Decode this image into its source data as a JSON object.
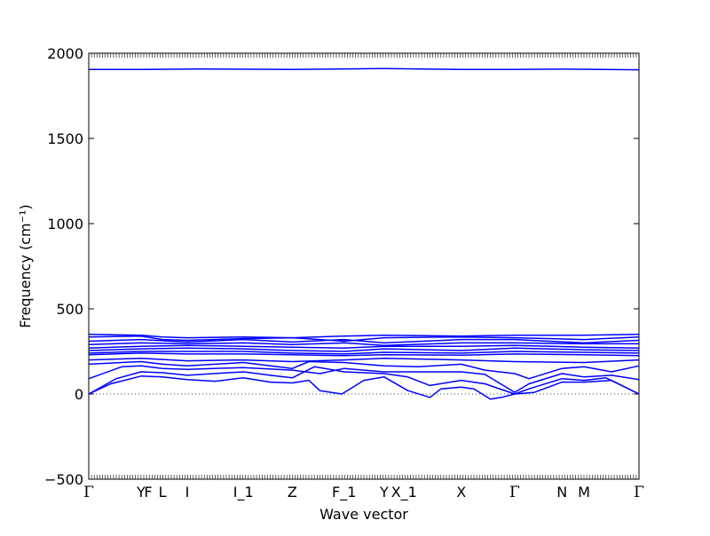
{
  "chart_data": {
    "type": "line",
    "title": "",
    "xlabel": "Wave vector",
    "ylabel": "Frequency (cm⁻¹)",
    "ylim": [
      -500,
      2000
    ],
    "yticks": [
      -500,
      0,
      500,
      1000,
      1500,
      2000
    ],
    "xlim": [
      0,
      100
    ],
    "grid": false,
    "legend": "none",
    "line_color": "#0000ff",
    "zero_line": {
      "y": 0,
      "style": "dotted",
      "color": "#000000"
    },
    "high_symmetry_points": [
      {
        "label": "Γ",
        "x": 0
      },
      {
        "label": "Y",
        "x": 9.5
      },
      {
        "label": "F",
        "x": 10.8
      },
      {
        "label": "L",
        "x": 13.4
      },
      {
        "label": "I",
        "x": 17.9
      },
      {
        "label": "I_1",
        "x": 28.1
      },
      {
        "label": "Z",
        "x": 37.0
      },
      {
        "label": "F_1",
        "x": 46.4
      },
      {
        "label": "Y",
        "x": 53.7
      },
      {
        "label": "X_1",
        "x": 57.3
      },
      {
        "label": "X",
        "x": 67.7
      },
      {
        "label": "Γ",
        "x": 77.4
      },
      {
        "label": "N",
        "x": 86.0
      },
      {
        "label": "M",
        "x": 90.0
      },
      {
        "label": "Γ",
        "x": 100
      }
    ],
    "series": [
      {
        "values": [
          [
            0,
            1905
          ],
          [
            10,
            1905
          ],
          [
            20,
            1908
          ],
          [
            37,
            1905
          ],
          [
            53.7,
            1910
          ],
          [
            67.7,
            1905
          ],
          [
            77.4,
            1905
          ],
          [
            86,
            1907
          ],
          [
            100,
            1903
          ]
        ]
      },
      {
        "values": [
          [
            0,
            350
          ],
          [
            9.5,
            345
          ],
          [
            13.4,
            335
          ],
          [
            17.9,
            330
          ],
          [
            28.1,
            335
          ],
          [
            37,
            330
          ],
          [
            46.4,
            340
          ],
          [
            53.7,
            345
          ],
          [
            67.7,
            340
          ],
          [
            77.4,
            345
          ],
          [
            90,
            345
          ],
          [
            100,
            350
          ]
        ]
      },
      {
        "values": [
          [
            0,
            335
          ],
          [
            9.5,
            340
          ],
          [
            13.4,
            320
          ],
          [
            17.9,
            315
          ],
          [
            28.1,
            325
          ],
          [
            37,
            330
          ],
          [
            46.4,
            310
          ],
          [
            53.7,
            330
          ],
          [
            67.7,
            335
          ],
          [
            77.4,
            330
          ],
          [
            90,
            320
          ],
          [
            100,
            335
          ]
        ]
      },
      {
        "values": [
          [
            0,
            310
          ],
          [
            9.5,
            320
          ],
          [
            17.9,
            305
          ],
          [
            28.1,
            320
          ],
          [
            37,
            305
          ],
          [
            46.4,
            320
          ],
          [
            53.7,
            300
          ],
          [
            67.7,
            320
          ],
          [
            77.4,
            320
          ],
          [
            90,
            300
          ],
          [
            100,
            315
          ]
        ]
      },
      {
        "values": [
          [
            0,
            290
          ],
          [
            9.5,
            300
          ],
          [
            17.9,
            295
          ],
          [
            28.1,
            300
          ],
          [
            37,
            290
          ],
          [
            46.4,
            300
          ],
          [
            53.7,
            285
          ],
          [
            67.7,
            300
          ],
          [
            77.4,
            300
          ],
          [
            90,
            295
          ],
          [
            100,
            295
          ]
        ]
      },
      {
        "values": [
          [
            0,
            270
          ],
          [
            9.5,
            280
          ],
          [
            17.9,
            285
          ],
          [
            28.1,
            280
          ],
          [
            37,
            275
          ],
          [
            46.4,
            270
          ],
          [
            53.7,
            280
          ],
          [
            67.7,
            280
          ],
          [
            77.4,
            285
          ],
          [
            90,
            275
          ],
          [
            100,
            270
          ]
        ]
      },
      {
        "values": [
          [
            0,
            255
          ],
          [
            9.5,
            265
          ],
          [
            17.9,
            270
          ],
          [
            28.1,
            265
          ],
          [
            37,
            255
          ],
          [
            46.4,
            250
          ],
          [
            53.7,
            265
          ],
          [
            67.7,
            255
          ],
          [
            77.4,
            270
          ],
          [
            90,
            260
          ],
          [
            100,
            255
          ]
        ]
      },
      {
        "values": [
          [
            0,
            240
          ],
          [
            9.5,
            250
          ],
          [
            17.9,
            250
          ],
          [
            28.1,
            250
          ],
          [
            37,
            240
          ],
          [
            46.4,
            235
          ],
          [
            53.7,
            245
          ],
          [
            67.7,
            240
          ],
          [
            77.4,
            250
          ],
          [
            90,
            245
          ],
          [
            100,
            240
          ]
        ]
      },
      {
        "values": [
          [
            0,
            230
          ],
          [
            9.5,
            240
          ],
          [
            17.9,
            235
          ],
          [
            28.1,
            235
          ],
          [
            37,
            230
          ],
          [
            46.4,
            225
          ],
          [
            53.7,
            230
          ],
          [
            67.7,
            228
          ],
          [
            77.4,
            235
          ],
          [
            90,
            230
          ],
          [
            100,
            225
          ]
        ]
      },
      {
        "values": [
          [
            0,
            200
          ],
          [
            9.5,
            210
          ],
          [
            17.9,
            195
          ],
          [
            28.1,
            200
          ],
          [
            37,
            190
          ],
          [
            46.4,
            200
          ],
          [
            53.7,
            210
          ],
          [
            67.7,
            200
          ],
          [
            77.4,
            190
          ],
          [
            90,
            185
          ],
          [
            100,
            200
          ]
        ]
      },
      {
        "values": [
          [
            0,
            175
          ],
          [
            6,
            185
          ],
          [
            9.5,
            190
          ],
          [
            13.4,
            175
          ],
          [
            17.9,
            165
          ],
          [
            28.1,
            185
          ],
          [
            37,
            150
          ],
          [
            40,
            190
          ],
          [
            46.4,
            185
          ],
          [
            53.7,
            165
          ],
          [
            60,
            160
          ],
          [
            67.7,
            175
          ],
          [
            72,
            140
          ],
          [
            77.4,
            120
          ],
          [
            80,
            90
          ],
          [
            86,
            150
          ],
          [
            90,
            160
          ],
          [
            95,
            130
          ],
          [
            100,
            165
          ]
        ]
      },
      {
        "values": [
          [
            0,
            90
          ],
          [
            6,
            160
          ],
          [
            9.5,
            165
          ],
          [
            13.4,
            150
          ],
          [
            17.9,
            145
          ],
          [
            28.1,
            155
          ],
          [
            37,
            140
          ],
          [
            42,
            120
          ],
          [
            46.4,
            150
          ],
          [
            53.7,
            130
          ],
          [
            60,
            130
          ],
          [
            67.7,
            130
          ],
          [
            72,
            115
          ],
          [
            77.4,
            10
          ],
          [
            80,
            60
          ],
          [
            86,
            120
          ],
          [
            90,
            100
          ],
          [
            95,
            110
          ],
          [
            100,
            85
          ]
        ]
      },
      {
        "values": [
          [
            0,
            0
          ],
          [
            5,
            90
          ],
          [
            9.5,
            130
          ],
          [
            13.4,
            125
          ],
          [
            17.9,
            110
          ],
          [
            28.1,
            130
          ],
          [
            33,
            110
          ],
          [
            37,
            95
          ],
          [
            41,
            160
          ],
          [
            46.4,
            130
          ],
          [
            53.7,
            120
          ],
          [
            58,
            100
          ],
          [
            62,
            50
          ],
          [
            67.7,
            80
          ],
          [
            72,
            60
          ],
          [
            77.4,
            0
          ],
          [
            80,
            30
          ],
          [
            86,
            90
          ],
          [
            90,
            80
          ],
          [
            94,
            95
          ],
          [
            100,
            0
          ]
        ]
      },
      {
        "values": [
          [
            0,
            0
          ],
          [
            4,
            60
          ],
          [
            9.5,
            105
          ],
          [
            13.4,
            100
          ],
          [
            17.9,
            85
          ],
          [
            23,
            75
          ],
          [
            28.1,
            95
          ],
          [
            33,
            70
          ],
          [
            37,
            65
          ],
          [
            40,
            80
          ],
          [
            42,
            20
          ],
          [
            46,
            0
          ],
          [
            50,
            80
          ],
          [
            53.7,
            100
          ],
          [
            58,
            20
          ],
          [
            62,
            -20
          ],
          [
            64,
            30
          ],
          [
            67.7,
            40
          ],
          [
            70,
            30
          ],
          [
            73,
            -30
          ],
          [
            75,
            -20
          ],
          [
            77.4,
            0
          ],
          [
            81,
            10
          ],
          [
            86,
            70
          ],
          [
            90,
            70
          ],
          [
            95,
            80
          ],
          [
            100,
            0
          ]
        ]
      }
    ]
  }
}
